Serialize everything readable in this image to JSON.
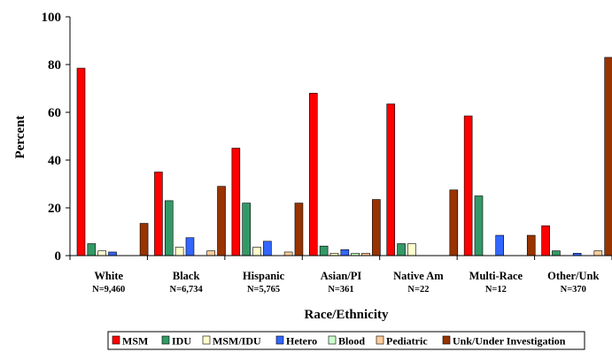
{
  "chart_data": {
    "type": "bar",
    "title": "",
    "xlabel": "Race/Ethnicity",
    "ylabel": "Percent",
    "ylim": [
      0,
      100
    ],
    "yticks": [
      0,
      20,
      40,
      60,
      80,
      100
    ],
    "grid": false,
    "legend_position": "bottom",
    "categories": [
      "White",
      "Black",
      "Hispanic",
      "Asian/PI",
      "Native Am",
      "Multi-Race",
      "Other/Unk"
    ],
    "category_counts": [
      "N=9,460",
      "N=6,734",
      "N=5,765",
      "N=361",
      "N=22",
      "N=12",
      "N=370"
    ],
    "series": [
      {
        "name": "MSM",
        "color": "#ff0000",
        "values": [
          78.5,
          35,
          45,
          68,
          63.5,
          58.5,
          12.5
        ]
      },
      {
        "name": "IDU",
        "color": "#339966",
        "values": [
          5,
          23,
          22,
          4,
          5,
          25,
          2
        ]
      },
      {
        "name": "MSM/IDU",
        "color": "#ffffcc",
        "values": [
          2,
          3.5,
          3.5,
          1,
          5,
          0,
          0
        ]
      },
      {
        "name": "Hetero",
        "color": "#3366ff",
        "values": [
          1.5,
          7.5,
          6,
          2.5,
          0,
          8.5,
          1
        ]
      },
      {
        "name": "Blood",
        "color": "#ccffcc",
        "values": [
          0,
          0,
          0,
          1,
          0,
          0,
          0
        ]
      },
      {
        "name": "Pediatric",
        "color": "#ffcc99",
        "values": [
          0,
          2,
          1.5,
          1,
          0,
          0,
          2
        ]
      },
      {
        "name": "Unk/Under Investigation",
        "color": "#993300",
        "values": [
          13.5,
          29,
          22,
          23.5,
          27.5,
          8.5,
          83
        ]
      }
    ]
  }
}
